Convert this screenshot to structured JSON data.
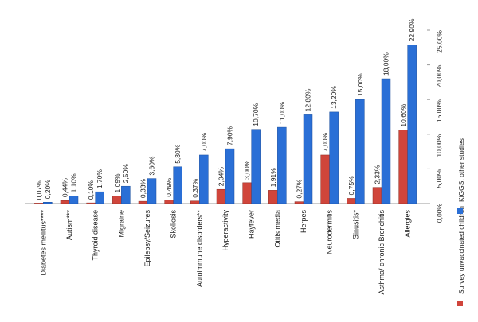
{
  "chart_data": {
    "type": "bar",
    "orientation": "vertical, rendered rotated 90° clockwise",
    "categories": [
      "Diabetes mellitus****",
      "Autism***",
      "Thyroid disease",
      "Migraine",
      "Epilepsy/Seizures",
      "Skoliosis",
      "Autoimmune disorders**",
      "Hyperactivity",
      "Hayfever",
      "Otitis media",
      "Herpes",
      "Neurodermitis",
      "Sinusitis*",
      "Asthma/ chronic Bronchitis",
      "Allergies"
    ],
    "series": [
      {
        "name": "Survey unvaccinated children",
        "color": "#d0453b",
        "values": [
          0.07,
          0.44,
          0.1,
          1.09,
          0.33,
          0.49,
          0.37,
          2.04,
          3.0,
          1.91,
          0.27,
          7.0,
          0.75,
          2.33,
          10.6
        ],
        "labels": [
          "0,07%",
          "0,44%",
          "0,10%",
          "1,09%",
          "0,33%",
          "0,49%",
          "0,37%",
          "2,04%",
          "3,00%",
          "1,91%",
          "0,27%",
          "7,00%",
          "0,75%",
          "2,33%",
          "10,60%"
        ]
      },
      {
        "name": "KiGGS, other studies",
        "color": "#2a6fd6",
        "values": [
          0.2,
          1.1,
          1.7,
          2.5,
          3.6,
          5.3,
          7.0,
          7.9,
          10.7,
          11.0,
          12.8,
          13.2,
          15.0,
          18.0,
          22.9
        ],
        "labels": [
          "0,20%",
          "1,10%",
          "1,70%",
          "2,50%",
          "3,60%",
          "5,30%",
          "7,00%",
          "7,90%",
          "10,70%",
          "11,00%",
          "12,80%",
          "13,20%",
          "15,00%",
          "18,00%",
          "22,90%"
        ]
      }
    ],
    "value_axis": {
      "range": [
        0,
        25
      ],
      "ticks": [
        0,
        5,
        10,
        15,
        20,
        25
      ],
      "tick_labels": [
        "0,00%",
        "5,00%",
        "10,00%",
        "15,00%",
        "20,00%",
        "25,00%"
      ],
      "unit": "%"
    },
    "title": "",
    "xlabel": "",
    "ylabel": "",
    "grid": false,
    "legend_placement": "right"
  }
}
